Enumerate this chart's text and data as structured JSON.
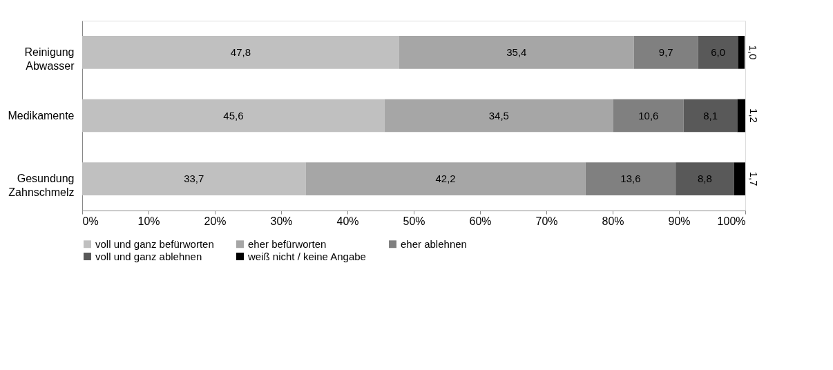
{
  "chart_data": {
    "type": "bar",
    "orientation": "horizontal",
    "stacked": true,
    "categories": [
      "Reinigung Abwasser",
      "Medikamente",
      "Gesundung Zahnschmelz"
    ],
    "series": [
      {
        "name": "voll und ganz befürworten",
        "color": "#c0c0c0",
        "values": [
          47.8,
          45.6,
          33.7
        ],
        "value_labels": [
          "47,8",
          "45,6",
          "33,7"
        ]
      },
      {
        "name": "eher befürworten",
        "color": "#a6a6a6",
        "values": [
          35.4,
          34.5,
          42.2
        ],
        "value_labels": [
          "35,4",
          "34,5",
          "42,2"
        ]
      },
      {
        "name": "eher ablehnen",
        "color": "#808080",
        "values": [
          9.7,
          10.6,
          13.6
        ],
        "value_labels": [
          "9,7",
          "10,6",
          "13,6"
        ]
      },
      {
        "name": "voll und ganz ablehnen",
        "color": "#595959",
        "values": [
          6.0,
          8.1,
          8.8
        ],
        "value_labels": [
          "6,0",
          "8,1",
          "8,8"
        ]
      },
      {
        "name": "weiß nicht / keine Angabe",
        "color": "#000000",
        "values": [
          1.0,
          1.2,
          1.7
        ],
        "value_labels": [
          "1,0",
          "1,2",
          "1,7"
        ]
      }
    ],
    "xlim": [
      0,
      100
    ],
    "xticks": [
      {
        "value": 0,
        "label": "0%"
      },
      {
        "value": 10,
        "label": "10%"
      },
      {
        "value": 20,
        "label": "20%"
      },
      {
        "value": 30,
        "label": "30%"
      },
      {
        "value": 40,
        "label": "40%"
      },
      {
        "value": 50,
        "label": "50%"
      },
      {
        "value": 60,
        "label": "60%"
      },
      {
        "value": 70,
        "label": "70%"
      },
      {
        "value": 80,
        "label": "80%"
      },
      {
        "value": 90,
        "label": "90%"
      },
      {
        "value": 100,
        "label": "100%"
      }
    ],
    "grid": false,
    "legend": "bottom"
  }
}
